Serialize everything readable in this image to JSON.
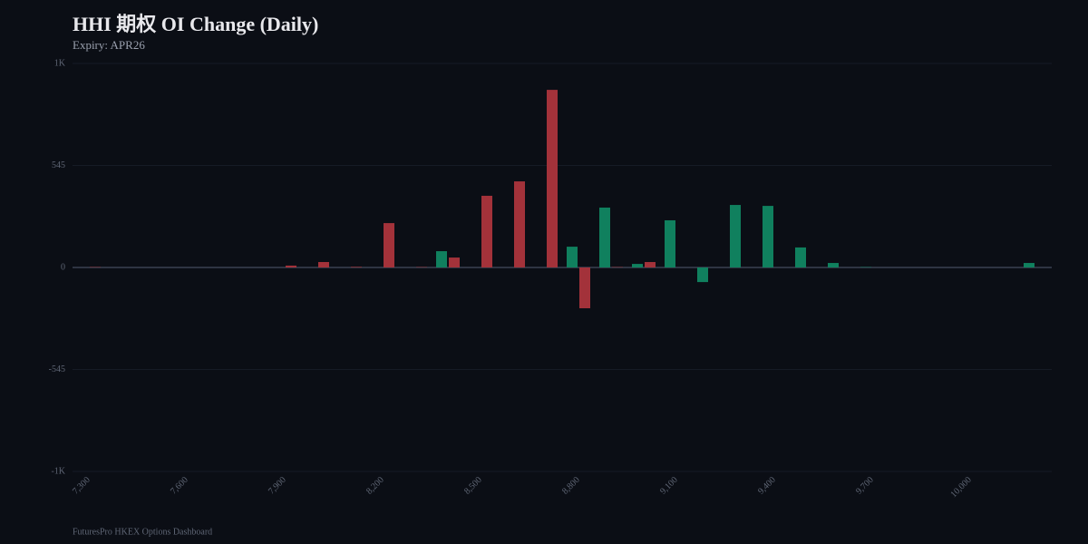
{
  "chart_data": {
    "type": "bar",
    "title": "HHI 期权 OI Change (Daily)",
    "subtitle": "Expiry: APR26",
    "footer": "FuturesPro HKEX Options Dashboard",
    "categories": [
      "7,300",
      null,
      null,
      "7,600",
      null,
      null,
      "7,900",
      null,
      null,
      "8,200",
      null,
      null,
      "8,500",
      null,
      null,
      "8,800",
      null,
      null,
      "9,100",
      null,
      null,
      "9,400",
      null,
      null,
      "9,700",
      null,
      null,
      "10,000",
      null,
      null
    ],
    "series": [
      {
        "color": "#10805e",
        "values": [
          0,
          0,
          0,
          0,
          0,
          0,
          0,
          0,
          0,
          0,
          0,
          87,
          0,
          0,
          0,
          111,
          320,
          19,
          252,
          -78,
          334,
          329,
          107,
          24,
          2,
          0,
          0,
          0,
          0,
          24
        ]
      },
      {
        "color": "#a3323a",
        "values": [
          2,
          0,
          0,
          0,
          0,
          0,
          10,
          29,
          3,
          237,
          2,
          53,
          383,
          460,
          949,
          -218,
          2,
          29,
          0,
          0,
          0,
          0,
          0,
          0,
          0,
          0,
          0,
          0,
          0,
          0
        ]
      }
    ],
    "ylim": [
      -1090,
      1090
    ],
    "yticks": [
      {
        "value": -1090,
        "label": "-1K"
      },
      -545,
      0,
      545,
      {
        "value": 1090,
        "label": "1K"
      }
    ],
    "grid": true
  }
}
